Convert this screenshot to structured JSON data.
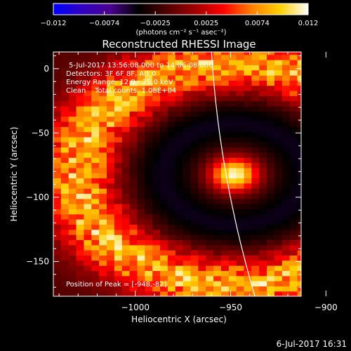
{
  "colorbar": {
    "ticks": [
      "-0.012",
      "-0.0074",
      "-0.0025",
      "0.0025",
      "0.0074",
      "0.012"
    ],
    "range": [
      -0.012,
      0.012
    ],
    "units_label": "(photons cm⁻² s⁻¹ asec⁻²)",
    "colormap": [
      "#0000ff",
      "#3000c0",
      "#4a0090",
      "#000000",
      "#500000",
      "#a00000",
      "#ff0000",
      "#ff8000",
      "#ffd000",
      "#ffffff"
    ]
  },
  "chart_data": {
    "type": "heatmap",
    "title": "Reconstructed RHESSI Image",
    "xlabel": "Heliocentric X (arcsec)",
    "ylabel": "Heliocentric Y (arcsec)",
    "xlim": [
      -1043,
      -913
    ],
    "ylim": [
      -177,
      13
    ],
    "xticks": [
      -1000,
      -950,
      -900
    ],
    "yticks": [
      0,
      -50,
      -100,
      -150
    ],
    "xtick_labels": [
      "−1000",
      "−950",
      "−900"
    ],
    "ytick_labels": [
      "0",
      "−50",
      "−100",
      "−150"
    ],
    "peak": {
      "x": -948,
      "y": -82,
      "value": 0.012
    },
    "limb_color": "#ffffff",
    "info_lines": [
      "5-Jul-2017 13:56:08.000 to 14:06:08.000",
      "Detectors: 3F 6F 8F, Att 0",
      "Energy Range: 12.0 - 25.0 keV",
      "Clean    Total counts: 1.08E+04"
    ],
    "peak_label": "Position of Peak = [-948,-82]"
  },
  "timestamp": "6-Jul-2017 16:31"
}
